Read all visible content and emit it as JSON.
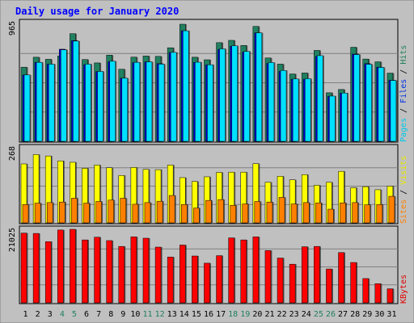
{
  "chart_data": {
    "type": "bar",
    "title": "Daily usage for January 2020",
    "x": [
      1,
      2,
      3,
      4,
      5,
      6,
      7,
      8,
      9,
      10,
      11,
      12,
      13,
      14,
      15,
      16,
      17,
      18,
      19,
      20,
      21,
      22,
      23,
      24,
      25,
      26,
      27,
      28,
      29,
      30,
      31
    ],
    "weekend_days": [
      4,
      5,
      11,
      12,
      18,
      19,
      25,
      26
    ],
    "panels": [
      {
        "id": "top",
        "max_label": "965",
        "ymax": 965,
        "legend": [
          {
            "label": "Pages",
            "color": "#00c8e8"
          },
          {
            "label": " / ",
            "color": "#000000"
          },
          {
            "label": "Files",
            "color": "#0030e0"
          },
          {
            "label": " / ",
            "color": "#000000"
          },
          {
            "label": "Hits",
            "color": "#20805a"
          }
        ],
        "series": [
          {
            "name": "Hits",
            "color": "#208060",
            "offset": 0,
            "values": [
              611,
              693,
              676,
              703,
              887,
              674,
              646,
              710,
              594,
              694,
              703,
              700,
              771,
              965,
              693,
              672,
              813,
              832,
              790,
              947,
              687,
              636,
              555,
              563,
              749,
              400,
              427,
              775,
              678,
              655,
              562
            ]
          },
          {
            "name": "Files",
            "color": "#0000e0",
            "offset": 1,
            "values": [
              547,
              651,
              635,
              759,
              830,
              632,
              575,
              656,
              520,
              648,
              655,
              640,
              732,
              911,
              650,
              630,
              758,
              783,
              735,
              894,
              642,
              576,
              511,
              512,
              701,
              370,
              397,
              719,
              640,
              611,
              504
            ]
          },
          {
            "name": "Pages",
            "color": "#00e0ff",
            "offset": 2,
            "values": [
              547,
              651,
              636,
              754,
              826,
              636,
              576,
              660,
              520,
              651,
              655,
              636,
              733,
              911,
              652,
              631,
              762,
              787,
              741,
              894,
              649,
              584,
              514,
              516,
              706,
              373,
              398,
              715,
              635,
              609,
              502
            ]
          }
        ]
      },
      {
        "id": "mid",
        "max_label": "268",
        "ymax": 268,
        "legend": [
          {
            "label": "Sites",
            "color": "#ff8000"
          },
          {
            "label": " / ",
            "color": "#000000"
          },
          {
            "label": "Visits",
            "color": "#e8e800"
          }
        ],
        "series": [
          {
            "name": "Visits",
            "color": "#ffff00",
            "offset": 0,
            "values": [
              215,
              249,
              244,
              226,
              221,
              199,
              211,
              201,
              173,
              202,
              195,
              194,
              211,
              165,
              151,
              168,
              184,
              185,
              185,
              216,
              148,
              170,
              157,
              176,
              137,
              148,
              188,
              128,
              132,
              121,
              134
            ]
          },
          {
            "name": "Sites",
            "color": "#ff8000",
            "offset": 1,
            "values": [
              67,
              72,
              74,
              76,
              90,
              72,
              78,
              83,
              90,
              68,
              74,
              79,
              100,
              67,
              54,
              82,
              85,
              64,
              69,
              78,
              76,
              93,
              69,
              74,
              73,
              50,
              73,
              74,
              66,
              67,
              97
            ]
          }
        ]
      },
      {
        "id": "bot",
        "max_label": "21025",
        "ymax": 21025,
        "legend": [
          {
            "label": "KBytes",
            "color": "#e00000"
          }
        ],
        "series": [
          {
            "name": "KBytes",
            "color": "#ff0000",
            "offset": 0,
            "values": [
              20400,
              20300,
              17900,
              21300,
              21500,
              18400,
              19200,
              18200,
              16500,
              19300,
              18900,
              16300,
              13400,
              16900,
              13700,
              11600,
              13800,
              19000,
              18400,
              19300,
              15300,
              13100,
              11300,
              16400,
              16500,
              9900,
              14700,
              11800,
              7100,
              5600,
              4100
            ]
          }
        ]
      }
    ]
  }
}
